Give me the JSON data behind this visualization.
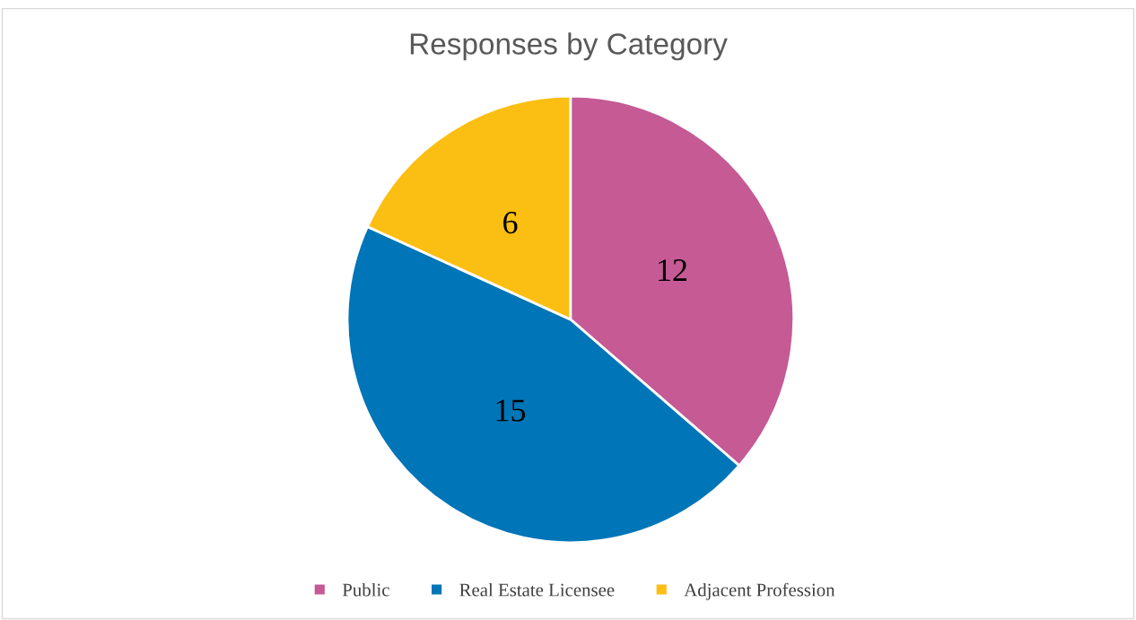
{
  "chart_data": {
    "type": "pie",
    "title": "Responses by Category",
    "categories": [
      "Public",
      "Real Estate Licensee",
      "Adjacent Profession"
    ],
    "values": [
      12,
      15,
      6
    ],
    "colors": [
      "#c55a95",
      "#0075b7",
      "#fbbe12"
    ],
    "data_labels": true,
    "legend": "bottom"
  }
}
